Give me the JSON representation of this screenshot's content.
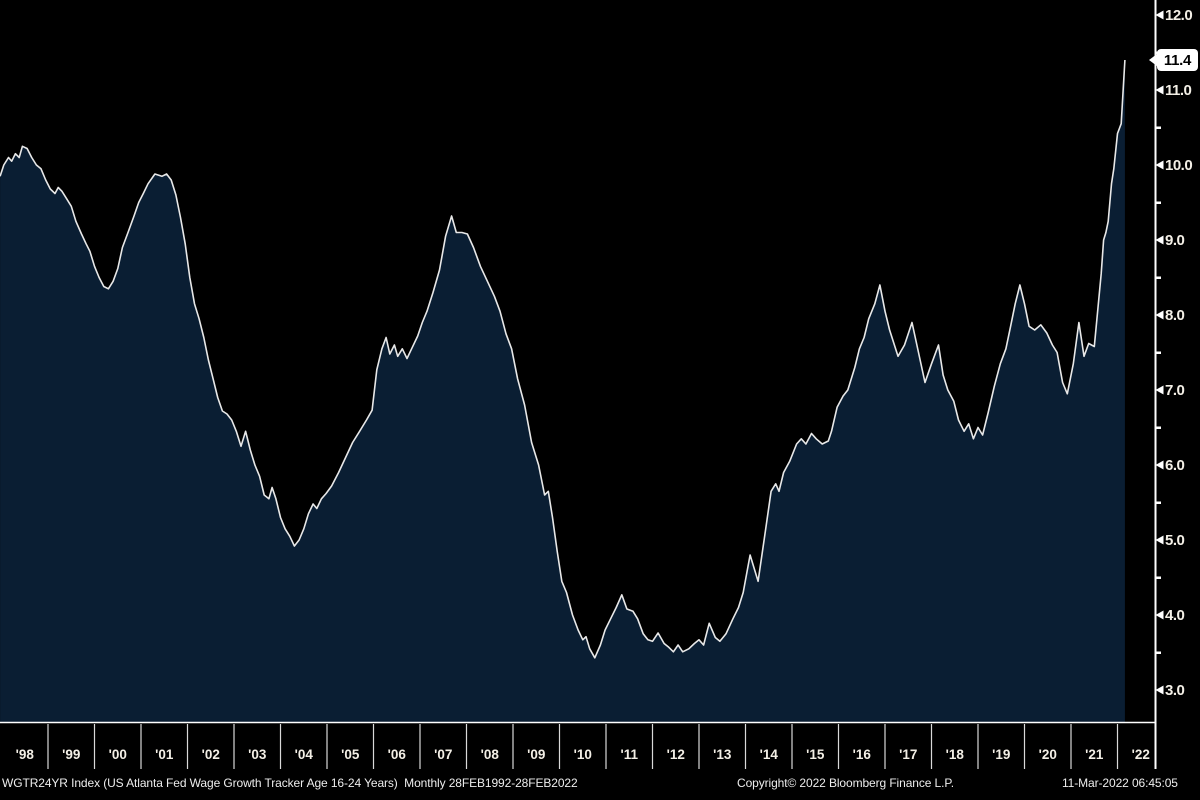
{
  "chart_data": {
    "type": "area",
    "title": "WGTR24YR Index (US Atlanta Fed Wage Growth Tracker Age 16-24 Years)",
    "frequency_range": "Monthly 28FEB1992-28FEB2022",
    "xlabel": "",
    "ylabel": "",
    "grid": false,
    "legend_position": "none",
    "xlim_years": [
      1997.97,
      2022.3
    ],
    "ylim": [
      2.6,
      12.2
    ],
    "y_tick_values": [
      12,
      11,
      10,
      9,
      8,
      7,
      6,
      5,
      4,
      3
    ],
    "y_tick_labels": [
      "12.0",
      "11.0",
      "10.0",
      "9.0",
      "8.0",
      "7.0",
      "6.0",
      "5.0",
      "4.0",
      "3.0"
    ],
    "y_minor_tick_values": [
      11.5,
      10.5,
      9.5,
      8.5,
      7.5,
      6.5,
      5.5,
      4.5,
      3.5
    ],
    "x_tick_years": [
      1998,
      1999,
      2000,
      2001,
      2002,
      2003,
      2004,
      2005,
      2006,
      2007,
      2008,
      2009,
      2010,
      2011,
      2012,
      2013,
      2014,
      2015,
      2016,
      2017,
      2018,
      2019,
      2020,
      2021,
      2022
    ],
    "x_tick_labels": [
      "'98",
      "'99",
      "'00",
      "'01",
      "'02",
      "'03",
      "'04",
      "'05",
      "'06",
      "'07",
      "'08",
      "'09",
      "'10",
      "'11",
      "'12",
      "'13",
      "'14",
      "'15",
      "'16",
      "'17",
      "'18",
      "'19",
      "'20",
      "'21",
      "'22"
    ],
    "last_value": 11.4,
    "last_value_label": "11.4",
    "colors": {
      "background": "#000000",
      "area_fill": "#0a1e33",
      "line": "#e8e8e8",
      "axis": "#ffffff",
      "tick_label": "#f3efe6",
      "separator": "#d9d9d9",
      "status_text": "#ededed",
      "badge_bg": "#ffffff",
      "badge_text": "#000000"
    },
    "points": [
      [
        1997.97,
        9.85
      ],
      [
        1998.05,
        10.0
      ],
      [
        1998.15,
        10.1
      ],
      [
        1998.22,
        10.05
      ],
      [
        1998.3,
        10.15
      ],
      [
        1998.38,
        10.1
      ],
      [
        1998.45,
        10.25
      ],
      [
        1998.55,
        10.22
      ],
      [
        1998.65,
        10.1
      ],
      [
        1998.75,
        10.0
      ],
      [
        1998.85,
        9.95
      ],
      [
        1998.95,
        9.8
      ],
      [
        1999.05,
        9.68
      ],
      [
        1999.15,
        9.62
      ],
      [
        1999.22,
        9.7
      ],
      [
        1999.3,
        9.65
      ],
      [
        1999.4,
        9.55
      ],
      [
        1999.5,
        9.45
      ],
      [
        1999.6,
        9.25
      ],
      [
        1999.72,
        9.08
      ],
      [
        1999.82,
        8.95
      ],
      [
        1999.9,
        8.85
      ],
      [
        2000.0,
        8.65
      ],
      [
        2000.1,
        8.5
      ],
      [
        2000.2,
        8.38
      ],
      [
        2000.3,
        8.35
      ],
      [
        2000.4,
        8.45
      ],
      [
        2000.5,
        8.62
      ],
      [
        2000.6,
        8.9
      ],
      [
        2000.72,
        9.1
      ],
      [
        2000.85,
        9.32
      ],
      [
        2000.95,
        9.5
      ],
      [
        2001.05,
        9.62
      ],
      [
        2001.15,
        9.75
      ],
      [
        2001.3,
        9.88
      ],
      [
        2001.45,
        9.85
      ],
      [
        2001.55,
        9.88
      ],
      [
        2001.65,
        9.8
      ],
      [
        2001.75,
        9.6
      ],
      [
        2001.85,
        9.3
      ],
      [
        2001.95,
        8.95
      ],
      [
        2002.05,
        8.5
      ],
      [
        2002.15,
        8.15
      ],
      [
        2002.25,
        7.95
      ],
      [
        2002.35,
        7.7
      ],
      [
        2002.45,
        7.4
      ],
      [
        2002.55,
        7.15
      ],
      [
        2002.65,
        6.9
      ],
      [
        2002.75,
        6.72
      ],
      [
        2002.85,
        6.68
      ],
      [
        2002.95,
        6.6
      ],
      [
        2003.05,
        6.45
      ],
      [
        2003.15,
        6.25
      ],
      [
        2003.25,
        6.45
      ],
      [
        2003.35,
        6.2
      ],
      [
        2003.45,
        6.0
      ],
      [
        2003.55,
        5.85
      ],
      [
        2003.65,
        5.6
      ],
      [
        2003.75,
        5.55
      ],
      [
        2003.82,
        5.7
      ],
      [
        2003.9,
        5.55
      ],
      [
        2004.0,
        5.3
      ],
      [
        2004.1,
        5.15
      ],
      [
        2004.2,
        5.05
      ],
      [
        2004.3,
        4.92
      ],
      [
        2004.4,
        5.0
      ],
      [
        2004.5,
        5.15
      ],
      [
        2004.6,
        5.35
      ],
      [
        2004.7,
        5.48
      ],
      [
        2004.78,
        5.42
      ],
      [
        2004.88,
        5.55
      ],
      [
        2004.98,
        5.62
      ],
      [
        2005.1,
        5.72
      ],
      [
        2005.25,
        5.9
      ],
      [
        2005.4,
        6.1
      ],
      [
        2005.55,
        6.3
      ],
      [
        2005.7,
        6.45
      ],
      [
        2005.85,
        6.6
      ],
      [
        2005.97,
        6.73
      ],
      [
        2006.07,
        7.27
      ],
      [
        2006.18,
        7.55
      ],
      [
        2006.27,
        7.7
      ],
      [
        2006.35,
        7.48
      ],
      [
        2006.45,
        7.6
      ],
      [
        2006.52,
        7.45
      ],
      [
        2006.62,
        7.55
      ],
      [
        2006.72,
        7.42
      ],
      [
        2006.82,
        7.55
      ],
      [
        2006.95,
        7.72
      ],
      [
        2007.05,
        7.9
      ],
      [
        2007.15,
        8.05
      ],
      [
        2007.28,
        8.3
      ],
      [
        2007.42,
        8.6
      ],
      [
        2007.55,
        9.05
      ],
      [
        2007.68,
        9.32
      ],
      [
        2007.78,
        9.1
      ],
      [
        2007.9,
        9.1
      ],
      [
        2008.02,
        9.08
      ],
      [
        2008.15,
        8.9
      ],
      [
        2008.3,
        8.65
      ],
      [
        2008.45,
        8.45
      ],
      [
        2008.6,
        8.25
      ],
      [
        2008.72,
        8.05
      ],
      [
        2008.85,
        7.75
      ],
      [
        2008.97,
        7.55
      ],
      [
        2009.1,
        7.15
      ],
      [
        2009.25,
        6.8
      ],
      [
        2009.4,
        6.3
      ],
      [
        2009.55,
        6.0
      ],
      [
        2009.68,
        5.6
      ],
      [
        2009.76,
        5.65
      ],
      [
        2009.85,
        5.3
      ],
      [
        2009.95,
        4.85
      ],
      [
        2010.05,
        4.45
      ],
      [
        2010.15,
        4.3
      ],
      [
        2010.28,
        4.0
      ],
      [
        2010.4,
        3.8
      ],
      [
        2010.5,
        3.67
      ],
      [
        2010.57,
        3.71
      ],
      [
        2010.65,
        3.55
      ],
      [
        2010.76,
        3.43
      ],
      [
        2010.88,
        3.6
      ],
      [
        2010.98,
        3.8
      ],
      [
        2011.1,
        3.95
      ],
      [
        2011.22,
        4.1
      ],
      [
        2011.34,
        4.27
      ],
      [
        2011.45,
        4.08
      ],
      [
        2011.58,
        4.05
      ],
      [
        2011.68,
        3.95
      ],
      [
        2011.8,
        3.75
      ],
      [
        2011.9,
        3.67
      ],
      [
        2012.0,
        3.65
      ],
      [
        2012.12,
        3.76
      ],
      [
        2012.25,
        3.62
      ],
      [
        2012.35,
        3.57
      ],
      [
        2012.45,
        3.51
      ],
      [
        2012.55,
        3.6
      ],
      [
        2012.65,
        3.51
      ],
      [
        2012.78,
        3.55
      ],
      [
        2012.9,
        3.62
      ],
      [
        2013.0,
        3.67
      ],
      [
        2013.1,
        3.6
      ],
      [
        2013.22,
        3.89
      ],
      [
        2013.35,
        3.7
      ],
      [
        2013.45,
        3.65
      ],
      [
        2013.58,
        3.75
      ],
      [
        2013.73,
        3.95
      ],
      [
        2013.85,
        4.1
      ],
      [
        2013.95,
        4.3
      ],
      [
        2014.1,
        4.8
      ],
      [
        2014.27,
        4.45
      ],
      [
        2014.4,
        5.0
      ],
      [
        2014.55,
        5.65
      ],
      [
        2014.65,
        5.75
      ],
      [
        2014.72,
        5.65
      ],
      [
        2014.82,
        5.9
      ],
      [
        2014.95,
        6.05
      ],
      [
        2015.1,
        6.28
      ],
      [
        2015.2,
        6.35
      ],
      [
        2015.3,
        6.28
      ],
      [
        2015.42,
        6.42
      ],
      [
        2015.52,
        6.35
      ],
      [
        2015.65,
        6.28
      ],
      [
        2015.78,
        6.32
      ],
      [
        2015.85,
        6.45
      ],
      [
        2015.97,
        6.77
      ],
      [
        2016.1,
        6.92
      ],
      [
        2016.2,
        7.0
      ],
      [
        2016.35,
        7.3
      ],
      [
        2016.45,
        7.55
      ],
      [
        2016.55,
        7.7
      ],
      [
        2016.65,
        7.95
      ],
      [
        2016.78,
        8.15
      ],
      [
        2016.89,
        8.4
      ],
      [
        2017.0,
        8.05
      ],
      [
        2017.1,
        7.8
      ],
      [
        2017.28,
        7.45
      ],
      [
        2017.42,
        7.6
      ],
      [
        2017.58,
        7.9
      ],
      [
        2017.72,
        7.5
      ],
      [
        2017.86,
        7.1
      ],
      [
        2018.0,
        7.35
      ],
      [
        2018.15,
        7.6
      ],
      [
        2018.25,
        7.2
      ],
      [
        2018.35,
        7.0
      ],
      [
        2018.48,
        6.85
      ],
      [
        2018.58,
        6.6
      ],
      [
        2018.7,
        6.45
      ],
      [
        2018.8,
        6.55
      ],
      [
        2018.9,
        6.35
      ],
      [
        2019.0,
        6.5
      ],
      [
        2019.1,
        6.4
      ],
      [
        2019.22,
        6.7
      ],
      [
        2019.35,
        7.05
      ],
      [
        2019.48,
        7.35
      ],
      [
        2019.6,
        7.55
      ],
      [
        2019.7,
        7.85
      ],
      [
        2019.8,
        8.15
      ],
      [
        2019.9,
        8.4
      ],
      [
        2020.0,
        8.15
      ],
      [
        2020.1,
        7.85
      ],
      [
        2020.22,
        7.8
      ],
      [
        2020.35,
        7.87
      ],
      [
        2020.48,
        7.76
      ],
      [
        2020.6,
        7.6
      ],
      [
        2020.7,
        7.5
      ],
      [
        2020.82,
        7.1
      ],
      [
        2020.92,
        6.95
      ],
      [
        2021.05,
        7.35
      ],
      [
        2021.17,
        7.9
      ],
      [
        2021.28,
        7.45
      ],
      [
        2021.38,
        7.62
      ],
      [
        2021.5,
        7.58
      ],
      [
        2021.58,
        8.1
      ],
      [
        2021.65,
        8.55
      ],
      [
        2021.7,
        9.0
      ],
      [
        2021.75,
        9.1
      ],
      [
        2021.8,
        9.25
      ],
      [
        2021.87,
        9.75
      ],
      [
        2021.92,
        9.95
      ],
      [
        2022.0,
        10.42
      ],
      [
        2022.08,
        10.55
      ],
      [
        2022.16,
        11.4
      ]
    ]
  },
  "status_bar": {
    "left": "WGTR24YR Index (US Atlanta Fed Wage Growth Tracker Age 16-24 Years)  Monthly 28FEB1992-28FEB2022",
    "copyright": "Copyright© 2022 Bloomberg Finance L.P.",
    "datetime": "11-Mar-2022 06:45:05"
  }
}
